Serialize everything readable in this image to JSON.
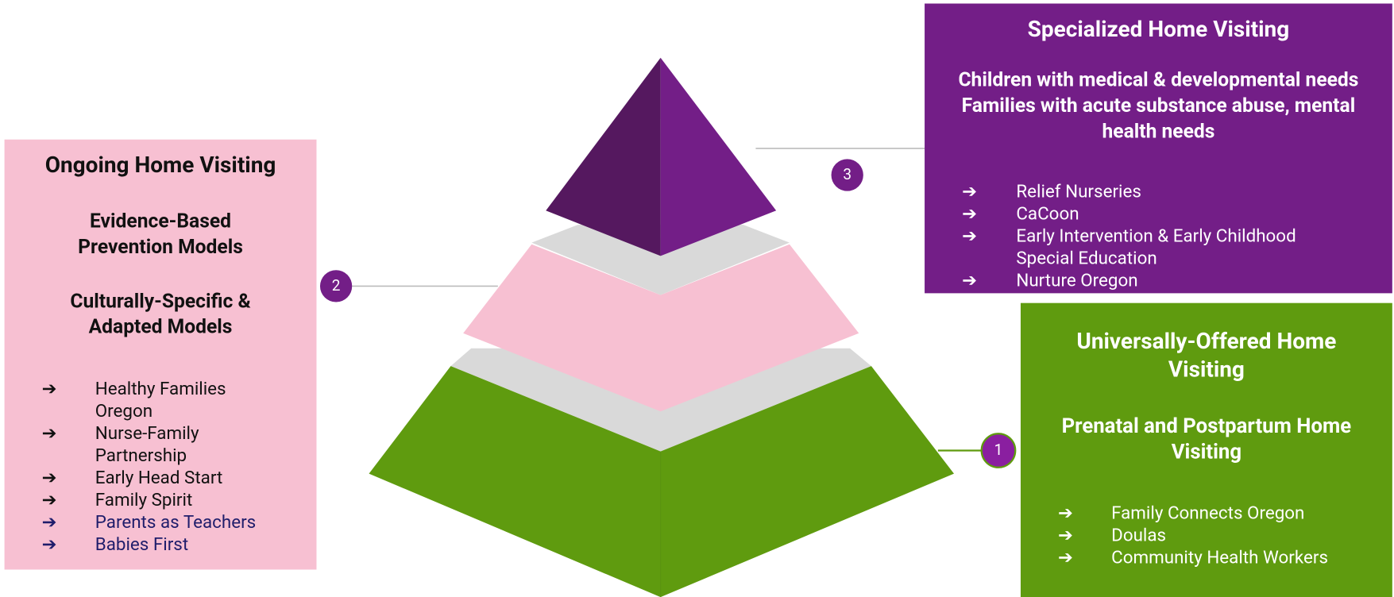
{
  "specialized": {
    "number": "3",
    "title": "Specialized Home Visiting",
    "description": [
      "Children with medical & developmental needs",
      "Families with acute substance abuse, mental health needs"
    ],
    "items": [
      "Relief Nurseries",
      "CaCoon",
      "Early Intervention & Early Childhood Special  Education",
      "Nurture Oregon"
    ]
  },
  "ongoing": {
    "number": "2",
    "title": "Ongoing Home Visiting",
    "sections": [
      "Evidence-Based Prevention Models",
      "Culturally-Specific & Adapted Models"
    ],
    "items": [
      "Healthy Families Oregon",
      "Nurse-Family Partnership",
      "Early Head Start",
      "Family Spirit",
      "Parents as Teachers",
      "Babies First"
    ]
  },
  "universal": {
    "number": "1",
    "title": "Universally-Offered Home Visiting",
    "subtitle": "Prenatal and Postpartum Home Visiting",
    "items": [
      "Family Connects Oregon",
      "Doulas",
      "Community Health Workers"
    ]
  }
}
